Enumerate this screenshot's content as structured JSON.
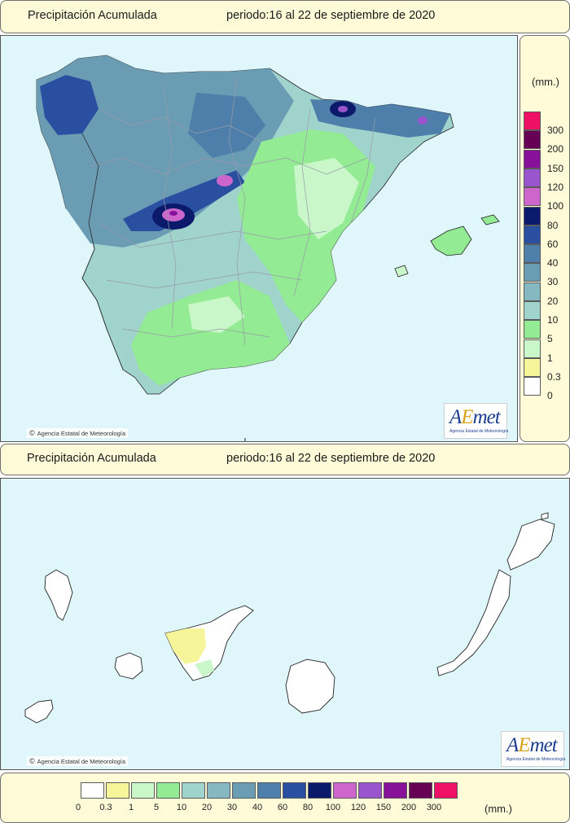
{
  "top_title": {
    "label": "Precipitación Acumulada",
    "period": "periodo:16 al 22 de septiembre de 2020"
  },
  "bottom_title": {
    "label": "Precipitación Acumulada",
    "period": "periodo:16 al 22 de septiembre de 2020"
  },
  "credit": "Agencia Estatal de Meteorología",
  "logo": {
    "text_a": "A",
    "text_b": "E",
    "text_c": "met",
    "subtitle": "Agencia Estatal de Meteorología"
  },
  "legend": {
    "unit": "(mm.)",
    "classes": [
      {
        "label": "0",
        "color": "#ffffff"
      },
      {
        "label": "0.3",
        "color": "#f7f59a"
      },
      {
        "label": "1",
        "color": "#c9f7c9"
      },
      {
        "label": "5",
        "color": "#93eb93"
      },
      {
        "label": "10",
        "color": "#9fd3cc"
      },
      {
        "label": "20",
        "color": "#86b8c2"
      },
      {
        "label": "30",
        "color": "#6a9cb4"
      },
      {
        "label": "40",
        "color": "#4e7eaa"
      },
      {
        "label": "60",
        "color": "#2a4fa0"
      },
      {
        "label": "80",
        "color": "#0c1a6b"
      },
      {
        "label": "100",
        "color": "#cc66cc"
      },
      {
        "label": "120",
        "color": "#9955cc"
      },
      {
        "label": "150",
        "color": "#881199"
      },
      {
        "label": "200",
        "color": "#660055"
      },
      {
        "label": "300",
        "color": "#ee1166"
      }
    ]
  },
  "colors": {
    "sea": "#dff6fb",
    "panel_bg": "#fffbd8",
    "border": "#6e6e6e"
  }
}
